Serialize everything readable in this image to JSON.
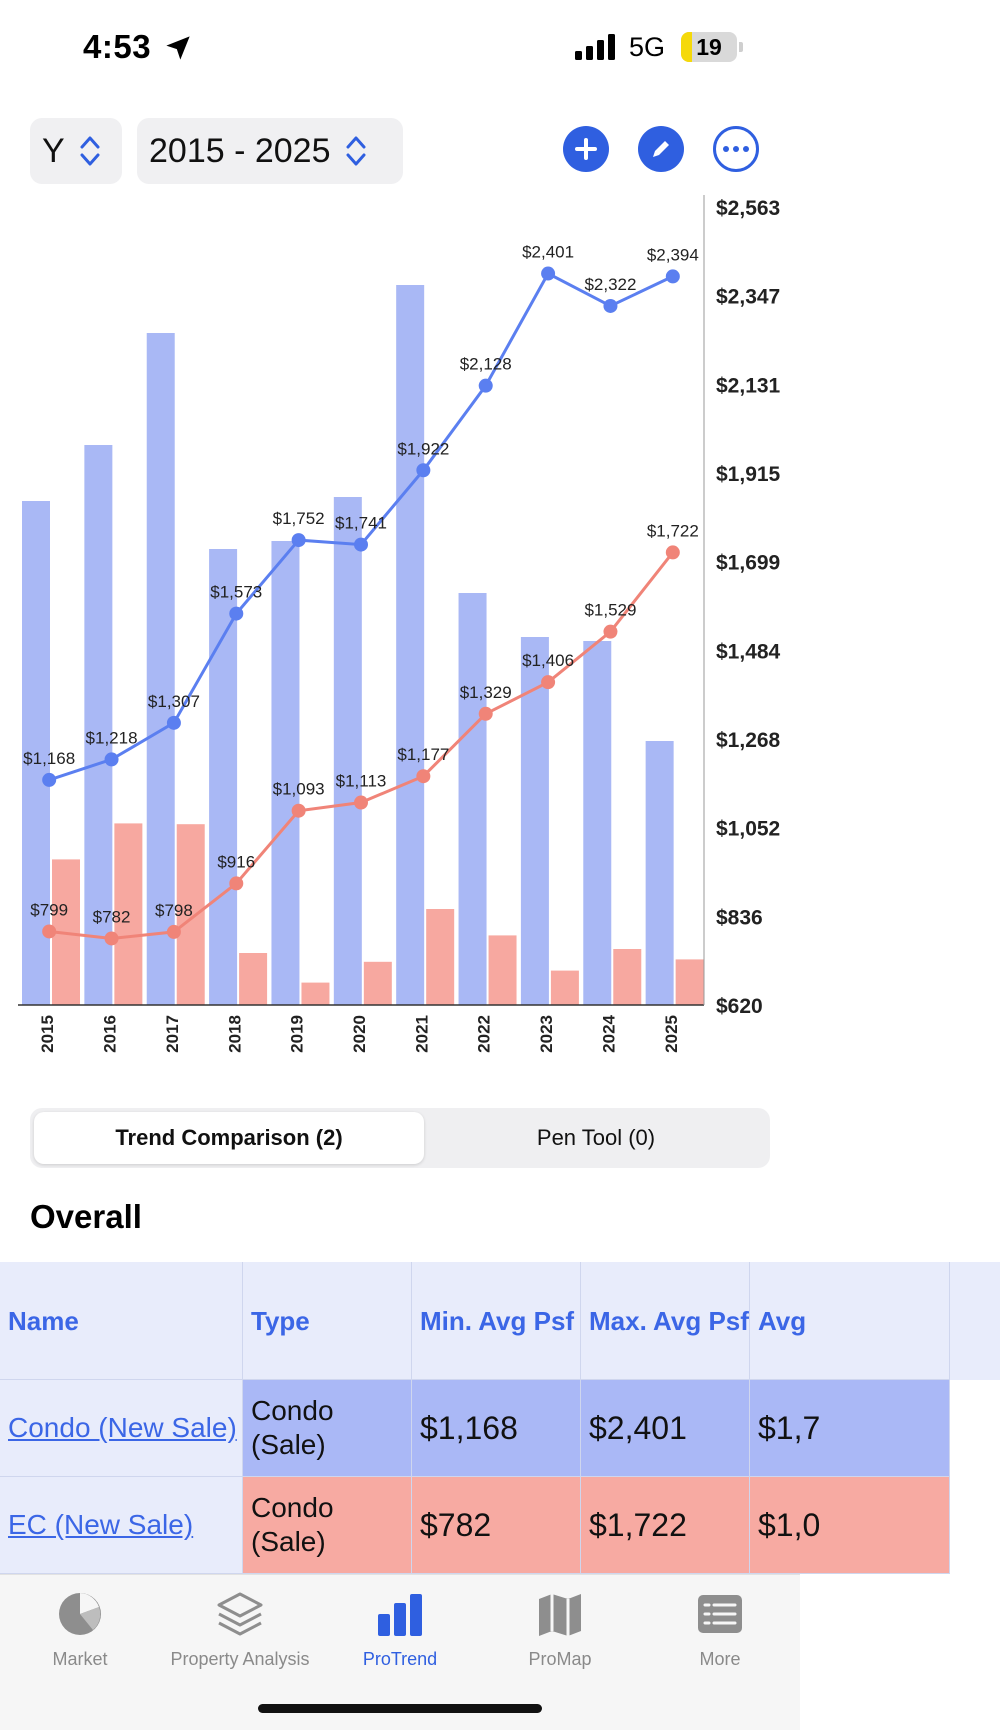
{
  "status": {
    "time": "4:53",
    "network": "5G",
    "battery": "19",
    "battery_level": 0.19
  },
  "toolbar": {
    "period": "Y",
    "range": "2015 - 2025"
  },
  "icons": {
    "location": "location-arrow-icon",
    "signal": "cellular-signal-icon",
    "battery": "battery-icon",
    "chevron": "chevron-up-down-icon",
    "add": "plus-icon",
    "edit": "pencil-icon",
    "more": "ellipsis-icon",
    "market": "pie-chart-icon",
    "analysis": "layers-icon",
    "protrend": "bar-chart-icon",
    "promap": "map-icon",
    "menu": "list-icon"
  },
  "colors": {
    "accent": "#2f5fe0",
    "series1": "#5b7ff0",
    "series2": "#f08478",
    "bar1": "#a9b8f5",
    "bar2": "#f7a8a0"
  },
  "chart_data": {
    "type": "line",
    "categories": [
      "2015",
      "2016",
      "2017",
      "2018",
      "2019",
      "2020",
      "2021",
      "2022",
      "2023",
      "2024",
      "2025"
    ],
    "series": [
      {
        "name": "Condo (New Sale)",
        "values": [
          1168,
          1218,
          1307,
          1573,
          1752,
          1741,
          1922,
          2128,
          2401,
          2322,
          2394
        ],
        "labels": [
          "$1,168",
          "$1,218",
          "$1,307",
          "$1,573",
          "$1,752",
          "$1,741",
          "$1,922",
          "$2,128",
          "$2,401",
          "$2,322",
          "$2,394"
        ]
      },
      {
        "name": "EC (New Sale)",
        "values": [
          799,
          782,
          798,
          916,
          1093,
          1113,
          1177,
          1329,
          1406,
          1529,
          1722
        ],
        "labels": [
          "$799",
          "$782",
          "$798",
          "$916",
          "$1,093",
          "$1,113",
          "$1,177",
          "$1,329",
          "$1,406",
          "$1,529",
          "$1,722"
        ]
      }
    ],
    "volume_bars": [
      {
        "name": "Condo (New Sale)",
        "relative": [
          0.63,
          0.7,
          0.84,
          0.57,
          0.58,
          0.635,
          0.9,
          0.515,
          0.46,
          0.455,
          0.33
        ]
      },
      {
        "name": "EC (New Sale)",
        "relative": [
          0.182,
          0.227,
          0.226,
          0.065,
          0.028,
          0.054,
          0.12,
          0.087,
          0.043,
          0.07,
          0.057
        ]
      }
    ],
    "y_ticks": [
      "$620",
      "$836",
      "$1,052",
      "$1,268",
      "$1,484",
      "$1,699",
      "$1,915",
      "$2,131",
      "$2,347",
      "$2,563"
    ],
    "ylim": [
      620,
      2563
    ],
    "y_axis_side": "right",
    "grid": false,
    "legend": "none"
  },
  "segmented": {
    "trend": "Trend Comparison (2)",
    "pen": "Pen Tool (0)"
  },
  "overall": {
    "title": "Overall",
    "headers": {
      "name": "Name",
      "type": "Type",
      "min": "Min. Avg Psf",
      "max": "Max. Avg Psf",
      "avg": "Avg"
    },
    "rows": [
      {
        "name": "Condo (New Sale)",
        "type": "Condo (Sale)",
        "min": "$1,168",
        "max": "$2,401",
        "avg": "$1,7"
      },
      {
        "name": "EC (New Sale)",
        "type": "Condo (Sale)",
        "min": "$782",
        "max": "$1,722",
        "avg": "$1,0"
      }
    ]
  },
  "tabs": [
    {
      "label": "Market"
    },
    {
      "label": "Property Analysis"
    },
    {
      "label": "ProTrend"
    },
    {
      "label": "ProMap"
    },
    {
      "label": "More"
    }
  ]
}
